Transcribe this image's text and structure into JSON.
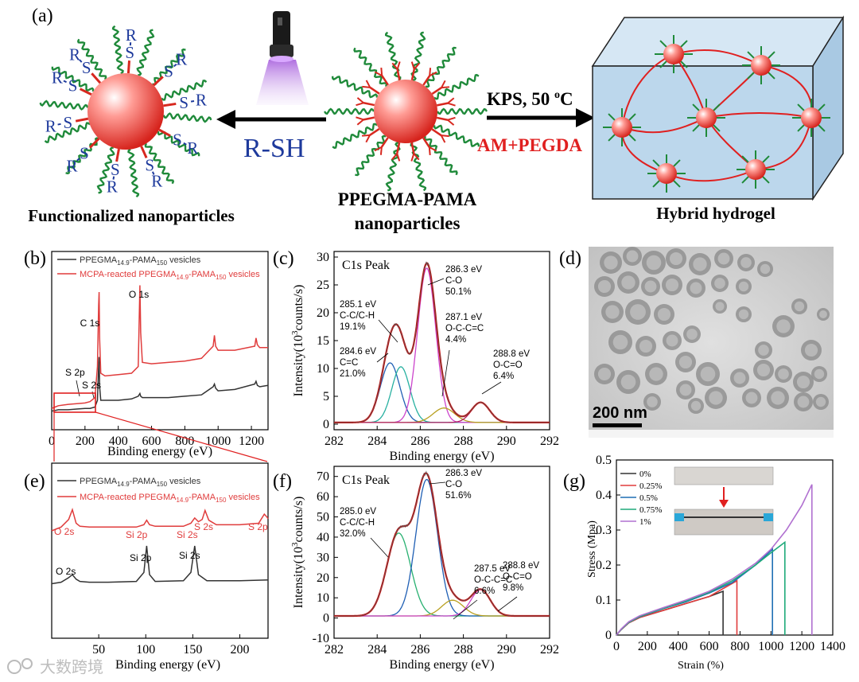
{
  "panel_labels": {
    "a": "(a)",
    "b": "(b)",
    "c": "(c)",
    "d": "(d)",
    "e": "(e)",
    "f": "(f)",
    "g": "(g)"
  },
  "scheme": {
    "left_caption": "Functionalized nanoparticles",
    "center_caption_line1": "PPEGMA-PAMA",
    "center_caption_line2": "nanoparticles",
    "right_caption": "Hybrid hydrogel",
    "reagent_left": "R-SH",
    "reagent_right_top": "KPS, 50 ",
    "reagent_right_top_sup": "o",
    "reagent_right_top_unit": "C",
    "reagent_right_bottom": "AM+PEGDA",
    "thiol_s": "S",
    "thiol_r": "R",
    "colors": {
      "sphere": "#e8332c",
      "red_arm": "#d7281f",
      "green_arm": "#1f8a3a",
      "blue_text": "#1e3a9c",
      "cube": "#bcd7ec",
      "reagent_red": "#e02020"
    }
  },
  "tem": {
    "scale_label": "200 nm"
  },
  "watermark": "大数跨境",
  "chart_data": [
    {
      "panel": "b",
      "type": "line",
      "xlabel": "Binding energy (eV)",
      "ylabel": "",
      "xlim": [
        0,
        1300
      ],
      "xticks": [
        0,
        200,
        400,
        600,
        800,
        1000,
        1200
      ],
      "legend": [
        {
          "name": "PPEGMA",
          "sub1": "14.9",
          "mid": "-PAMA",
          "sub2": "150",
          "tail": " vesicles",
          "color": "#333333"
        },
        {
          "name": "MCPA-reacted PPEGMA",
          "sub1": "14.9",
          "mid": "-PAMA",
          "sub2": "150",
          "tail": " vesicles",
          "color": "#e03c3c"
        }
      ],
      "annotations": [
        {
          "text": "O 1s",
          "x": 530
        },
        {
          "text": "C 1s",
          "x": 285
        },
        {
          "text": "S 2p",
          "x": 165
        },
        {
          "text": "S 2s",
          "x": 230
        }
      ],
      "series": [
        {
          "name": "PPEGMA14.9-PAMA150 vesicles",
          "color": "#333333",
          "x": [
            0,
            20,
            40,
            100,
            150,
            200,
            230,
            260,
            275,
            282,
            285,
            288,
            295,
            320,
            400,
            480,
            520,
            530,
            535,
            545,
            600,
            700,
            800,
            900,
            970,
            978,
            985,
            1000,
            1100,
            1220,
            1228,
            1236,
            1250,
            1300
          ],
          "y": [
            0.02,
            0.025,
            0.03,
            0.03,
            0.035,
            0.04,
            0.04,
            0.05,
            0.1,
            0.35,
            0.42,
            0.2,
            0.1,
            0.1,
            0.1,
            0.11,
            0.13,
            0.15,
            0.13,
            0.12,
            0.12,
            0.12,
            0.13,
            0.14,
            0.2,
            0.22,
            0.19,
            0.17,
            0.18,
            0.22,
            0.24,
            0.21,
            0.2,
            0.21
          ]
        },
        {
          "name": "MCPA-reacted PPEGMA14.9-PAMA150 vesicles",
          "color": "#e03c3c",
          "x": [
            0,
            20,
            40,
            100,
            150,
            200,
            230,
            260,
            275,
            282,
            285,
            288,
            295,
            320,
            400,
            480,
            520,
            530,
            535,
            545,
            600,
            700,
            800,
            900,
            970,
            978,
            985,
            1000,
            1100,
            1220,
            1228,
            1236,
            1250,
            1300
          ],
          "y": [
            0.04,
            0.05,
            0.06,
            0.07,
            0.075,
            0.08,
            0.09,
            0.12,
            0.35,
            0.8,
            0.9,
            0.55,
            0.3,
            0.28,
            0.29,
            0.3,
            0.35,
            0.95,
            0.6,
            0.38,
            0.37,
            0.38,
            0.39,
            0.41,
            0.5,
            0.58,
            0.5,
            0.47,
            0.47,
            0.5,
            0.56,
            0.51,
            0.49,
            0.49
          ]
        }
      ]
    },
    {
      "panel": "c",
      "type": "line",
      "title": "C1s Peak",
      "xlabel": "Binding energy (eV)",
      "ylabel": "Intensity(10",
      "ylabel_sup": "3",
      "ylabel_tail": "counts/s)",
      "xlim": [
        282,
        292
      ],
      "ylim": [
        -1,
        31
      ],
      "xticks": [
        282,
        284,
        286,
        288,
        290,
        292
      ],
      "yticks": [
        0,
        5,
        10,
        15,
        20,
        25,
        30
      ],
      "background": 0.3,
      "peaks": [
        {
          "center": 284.6,
          "height": 10.7,
          "sigma": 0.45,
          "color": "#1f5fb4",
          "label": [
            "284.6 eV",
            "C=C",
            "21.0%"
          ]
        },
        {
          "center": 285.1,
          "height": 10.0,
          "sigma": 0.42,
          "color": "#27b0a0",
          "label": [
            "285.1 eV",
            "C-C/C-H",
            "19.1%"
          ]
        },
        {
          "center": 286.3,
          "height": 27.7,
          "sigma": 0.42,
          "color": "#cc44cc",
          "label": [
            "286.3 eV",
            "C-O",
            "50.1%"
          ]
        },
        {
          "center": 287.1,
          "height": 2.6,
          "sigma": 0.5,
          "color": "#b8a020",
          "label": [
            "287.1 eV",
            "O-C-C=C",
            "4.4%"
          ]
        },
        {
          "center": 288.8,
          "height": 3.6,
          "sigma": 0.42,
          "color": "#b02060",
          "label": [
            "288.8 eV",
            "O-C=O",
            "6.4%"
          ]
        }
      ],
      "envelope_color": "#cc1010"
    },
    {
      "panel": "e",
      "type": "line",
      "xlabel": "Binding energy (eV)",
      "xlim": [
        0,
        230
      ],
      "xticks": [
        50,
        100,
        150,
        200
      ],
      "legend": [
        {
          "name": "PPEGMA",
          "sub1": "14.9",
          "mid": "-PAMA",
          "sub2": "150",
          "tail": " vesicles",
          "color": "#333333"
        },
        {
          "name": "MCPA-reacted PPEGMA",
          "sub1": "14.9",
          "mid": "-PAMA",
          "sub2": "150",
          "tail": " vesicles",
          "color": "#e03c3c"
        }
      ],
      "annotations_red": [
        {
          "text": "O 2s",
          "x": 22
        },
        {
          "text": "Si 2p",
          "x": 102
        },
        {
          "text": "Si 2s",
          "x": 150
        },
        {
          "text": "S 2s",
          "x": 166
        },
        {
          "text": "S 2p",
          "x": 228
        }
      ],
      "annotations_black": [
        {
          "text": "O 2s",
          "x": 15
        },
        {
          "text": "Si 2p",
          "x": 102
        },
        {
          "text": "Si 2s",
          "x": 152
        }
      ],
      "series": [
        {
          "name": "PPEGMA14.9-PAMA150 vesicles",
          "color": "#333333",
          "x": [
            0,
            10,
            18,
            22,
            26,
            30,
            40,
            60,
            90,
            98,
            101,
            104,
            110,
            140,
            148,
            152,
            156,
            165,
            200,
            230
          ],
          "y": [
            0.3,
            0.32,
            0.38,
            0.42,
            0.36,
            0.33,
            0.32,
            0.32,
            0.33,
            0.45,
            0.8,
            0.42,
            0.33,
            0.34,
            0.45,
            0.8,
            0.42,
            0.34,
            0.34,
            0.35
          ]
        },
        {
          "name": "MCPA-reacted PPEGMA14.9-PAMA150 vesicles",
          "color": "#e03c3c",
          "x": [
            0,
            10,
            18,
            22,
            26,
            30,
            40,
            60,
            90,
            98,
            101,
            104,
            110,
            140,
            148,
            152,
            156,
            160,
            163,
            167,
            175,
            200,
            220,
            226,
            229,
            230
          ],
          "y": [
            1.0,
            1.05,
            1.15,
            1.28,
            1.1,
            1.06,
            1.05,
            1.05,
            1.05,
            1.08,
            1.14,
            1.08,
            1.06,
            1.06,
            1.1,
            1.17,
            1.12,
            1.15,
            1.27,
            1.14,
            1.08,
            1.08,
            1.1,
            1.22,
            1.18,
            1.16
          ]
        }
      ]
    },
    {
      "panel": "f",
      "type": "line",
      "title": "C1s Peak",
      "xlabel": "Binding energy (eV)",
      "ylabel": "Intensity(10",
      "ylabel_sup": "3",
      "ylabel_tail": "counts/s)",
      "xlim": [
        282,
        292
      ],
      "ylim": [
        -10,
        75
      ],
      "xticks": [
        282,
        284,
        286,
        288,
        290,
        292
      ],
      "yticks": [
        -10,
        0,
        10,
        20,
        30,
        40,
        50,
        60,
        70
      ],
      "background": 1.0,
      "peaks": [
        {
          "center": 285.0,
          "height": 41.0,
          "sigma": 0.55,
          "color": "#27b070",
          "label": [
            "285.0 eV",
            "C-C/C-H",
            "32.0%"
          ]
        },
        {
          "center": 286.3,
          "height": 67.5,
          "sigma": 0.5,
          "color": "#1f5fb4",
          "label": [
            "286.3 eV",
            "C-O",
            "51.6%"
          ]
        },
        {
          "center": 287.5,
          "height": 7.8,
          "sigma": 0.5,
          "color": "#b8a020",
          "label": [
            "287.5 eV",
            "O-C-C=C",
            "6.6%"
          ]
        },
        {
          "center": 288.8,
          "height": 13.0,
          "sigma": 0.45,
          "color": "#cc44cc",
          "label": [
            "288.8 eV",
            "O-C=O",
            "9.8%"
          ]
        }
      ],
      "envelope_color": "#cc1010"
    },
    {
      "panel": "g",
      "type": "line",
      "xlabel": "Strain (%)",
      "ylabel": "Stress (Mpa)",
      "xlim": [
        0,
        1400
      ],
      "ylim": [
        0,
        0.5
      ],
      "xticks": [
        0,
        200,
        400,
        600,
        800,
        1000,
        1200,
        1400
      ],
      "yticks": [
        0.0,
        0.1,
        0.2,
        0.3,
        0.4,
        0.5
      ],
      "legend": [
        "0%",
        "0.25%",
        "0.5%",
        "0.75%",
        "1%"
      ],
      "series": [
        {
          "name": "0%",
          "color": "#333333",
          "x": [
            0,
            30,
            80,
            150,
            300,
            450,
            600,
            690,
            690
          ],
          "y": [
            0,
            0.015,
            0.035,
            0.05,
            0.07,
            0.09,
            0.11,
            0.125,
            0
          ]
        },
        {
          "name": "0.25%",
          "color": "#e03c3c",
          "x": [
            0,
            30,
            80,
            150,
            300,
            450,
            600,
            780,
            780
          ],
          "y": [
            0,
            0.015,
            0.035,
            0.05,
            0.07,
            0.09,
            0.11,
            0.155,
            0
          ]
        },
        {
          "name": "0.5%",
          "color": "#1f6fb4",
          "x": [
            0,
            30,
            80,
            150,
            300,
            450,
            600,
            750,
            900,
            1010,
            1010
          ],
          "y": [
            0,
            0.016,
            0.036,
            0.052,
            0.075,
            0.095,
            0.12,
            0.15,
            0.2,
            0.245,
            0
          ]
        },
        {
          "name": "0.75%",
          "color": "#1faa7a",
          "x": [
            0,
            30,
            80,
            150,
            300,
            450,
            600,
            750,
            900,
            1000,
            1090,
            1090
          ],
          "y": [
            0,
            0.016,
            0.036,
            0.053,
            0.076,
            0.097,
            0.122,
            0.155,
            0.2,
            0.235,
            0.265,
            0
          ]
        },
        {
          "name": "1%",
          "color": "#b070d0",
          "x": [
            0,
            30,
            80,
            150,
            300,
            450,
            600,
            750,
            900,
            1000,
            1100,
            1200,
            1265,
            1265
          ],
          "y": [
            0,
            0.017,
            0.038,
            0.055,
            0.078,
            0.1,
            0.125,
            0.16,
            0.205,
            0.245,
            0.3,
            0.37,
            0.43,
            0
          ]
        }
      ]
    }
  ]
}
